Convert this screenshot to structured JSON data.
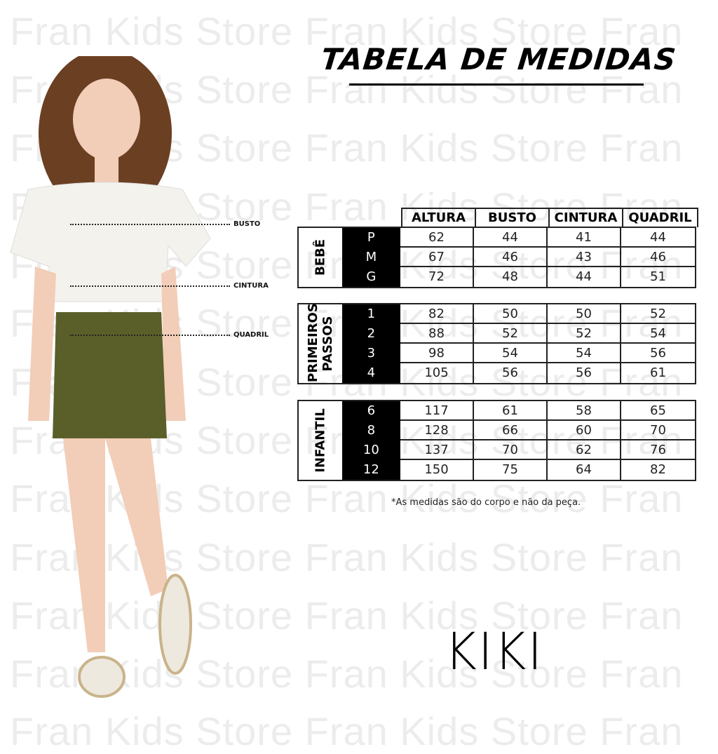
{
  "watermark": "Fran Kids Store Fran Kids Store Fran",
  "title": "TABELA DE MEDIDAS",
  "measure_labels": {
    "busto": "BUSTO",
    "cintura": "CINTURA",
    "quadril": "QUADRIL"
  },
  "table": {
    "columns": [
      "ALTURA",
      "BUSTO",
      "CINTURA",
      "QUADRIL"
    ],
    "groups": [
      {
        "label": "BEBÊ",
        "rows": [
          {
            "size": "P",
            "values": [
              "62",
              "44",
              "41",
              "44"
            ]
          },
          {
            "size": "M",
            "values": [
              "67",
              "46",
              "43",
              "46"
            ]
          },
          {
            "size": "G",
            "values": [
              "72",
              "48",
              "44",
              "51"
            ]
          }
        ]
      },
      {
        "label": "PRIMEIROS PASSOS",
        "rows": [
          {
            "size": "1",
            "values": [
              "82",
              "50",
              "50",
              "52"
            ]
          },
          {
            "size": "2",
            "values": [
              "88",
              "52",
              "52",
              "54"
            ]
          },
          {
            "size": "3",
            "values": [
              "98",
              "54",
              "54",
              "56"
            ]
          },
          {
            "size": "4",
            "values": [
              "105",
              "56",
              "56",
              "61"
            ]
          }
        ]
      },
      {
        "label": "INFANTIL",
        "rows": [
          {
            "size": "6",
            "values": [
              "117",
              "61",
              "58",
              "65"
            ]
          },
          {
            "size": "8",
            "values": [
              "128",
              "66",
              "60",
              "70"
            ]
          },
          {
            "size": "10",
            "values": [
              "137",
              "70",
              "62",
              "76"
            ]
          },
          {
            "size": "12",
            "values": [
              "150",
              "75",
              "64",
              "82"
            ]
          }
        ]
      }
    ]
  },
  "note": "*As medidas são do corpo e não da peça.",
  "brand": "KIKI",
  "colors": {
    "skirt": "#5a5f2a",
    "top": "#f4f2ec",
    "hair": "#6b3f22"
  }
}
